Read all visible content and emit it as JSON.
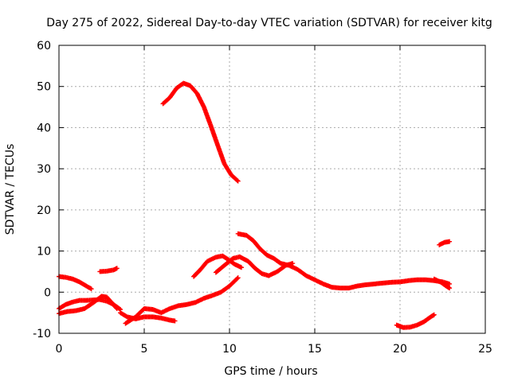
{
  "chart_data": {
    "type": "scatter",
    "title": "Day 275 of 2022, Sidereal Day-to-day VTEC variation (SDTVAR) for receiver kitg",
    "xlabel": "GPS time / hours",
    "ylabel": "SDTVAR / TECUs",
    "xlim": [
      0,
      25
    ],
    "ylim": [
      -10,
      60
    ],
    "xticks": [
      0,
      5,
      10,
      15,
      20,
      25
    ],
    "yticks": [
      -10,
      0,
      10,
      20,
      30,
      40,
      50,
      60
    ],
    "grid": true,
    "marker_color": "#ff0000",
    "series": [
      {
        "name": "arc-high-peak",
        "points": [
          [
            6.1,
            45.8
          ],
          [
            6.5,
            47.3
          ],
          [
            6.9,
            49.6
          ],
          [
            7.3,
            50.8
          ],
          [
            7.7,
            50.2
          ],
          [
            8.1,
            48.3
          ],
          [
            8.5,
            45.0
          ],
          [
            8.9,
            40.5
          ],
          [
            9.3,
            35.8
          ],
          [
            9.7,
            31.2
          ],
          [
            10.1,
            28.5
          ],
          [
            10.5,
            27.0
          ]
        ]
      },
      {
        "name": "arc-early-decline",
        "points": [
          [
            0.0,
            3.8
          ],
          [
            0.4,
            3.6
          ],
          [
            0.8,
            3.2
          ],
          [
            1.2,
            2.5
          ],
          [
            1.6,
            1.5
          ],
          [
            1.9,
            0.8
          ]
        ]
      },
      {
        "name": "arc-short-2.5h",
        "points": [
          [
            2.4,
            5.0
          ],
          [
            2.8,
            5.1
          ],
          [
            3.2,
            5.4
          ],
          [
            3.4,
            5.8
          ]
        ]
      },
      {
        "name": "arc-low-wave",
        "points": [
          [
            0.0,
            -4.0
          ],
          [
            0.4,
            -3.0
          ],
          [
            0.8,
            -2.4
          ],
          [
            1.2,
            -2.0
          ],
          [
            1.6,
            -2.0
          ],
          [
            2.0,
            -1.9
          ],
          [
            2.4,
            -1.8
          ],
          [
            2.8,
            -2.2
          ],
          [
            3.2,
            -3.0
          ],
          [
            3.6,
            -4.2
          ]
        ]
      },
      {
        "name": "arc-low-hump",
        "points": [
          [
            0.0,
            -5.2
          ],
          [
            0.5,
            -4.7
          ],
          [
            1.0,
            -4.5
          ],
          [
            1.5,
            -4.0
          ],
          [
            2.0,
            -2.6
          ],
          [
            2.5,
            -1.0
          ],
          [
            2.8,
            -1.2
          ],
          [
            3.1,
            -2.6
          ],
          [
            3.4,
            -4.0
          ]
        ]
      },
      {
        "name": "arc-dip-4to7h",
        "points": [
          [
            3.6,
            -5.0
          ],
          [
            4.0,
            -6.0
          ],
          [
            4.5,
            -6.5
          ],
          [
            5.0,
            -6.0
          ],
          [
            5.5,
            -6.0
          ],
          [
            6.0,
            -6.3
          ],
          [
            6.5,
            -6.8
          ],
          [
            6.8,
            -7.0
          ]
        ]
      },
      {
        "name": "arc-rise-to-10.5h",
        "points": [
          [
            3.9,
            -7.6
          ],
          [
            4.5,
            -6.0
          ],
          [
            5.0,
            -4.0
          ],
          [
            5.5,
            -4.2
          ],
          [
            6.0,
            -5.0
          ],
          [
            6.5,
            -4.0
          ],
          [
            7.0,
            -3.3
          ],
          [
            7.5,
            -3.0
          ],
          [
            8.0,
            -2.5
          ],
          [
            8.5,
            -1.5
          ],
          [
            9.0,
            -0.8
          ],
          [
            9.5,
            0.0
          ],
          [
            10.0,
            1.5
          ],
          [
            10.5,
            3.5
          ]
        ]
      },
      {
        "name": "arc-bump-8to11h",
        "points": [
          [
            7.9,
            3.8
          ],
          [
            8.3,
            5.5
          ],
          [
            8.7,
            7.5
          ],
          [
            9.2,
            8.5
          ],
          [
            9.6,
            8.8
          ],
          [
            9.9,
            8.0
          ],
          [
            10.3,
            6.8
          ],
          [
            10.7,
            6.0
          ]
        ]
      },
      {
        "name": "arc-bump-9to12h",
        "points": [
          [
            9.2,
            4.8
          ],
          [
            9.7,
            6.5
          ],
          [
            10.2,
            8.2
          ],
          [
            10.6,
            8.6
          ],
          [
            11.1,
            7.5
          ],
          [
            11.5,
            5.8
          ],
          [
            11.9,
            4.5
          ],
          [
            12.3,
            4.0
          ],
          [
            12.8,
            5.0
          ],
          [
            13.3,
            6.5
          ],
          [
            13.7,
            7.0
          ]
        ]
      },
      {
        "name": "arc-mid-to-end",
        "points": [
          [
            10.5,
            14.2
          ],
          [
            11.0,
            13.8
          ],
          [
            11.4,
            12.5
          ],
          [
            11.8,
            10.5
          ],
          [
            12.2,
            9.0
          ],
          [
            12.6,
            8.2
          ],
          [
            13.0,
            7.0
          ],
          [
            13.5,
            6.5
          ],
          [
            14.0,
            5.5
          ],
          [
            14.5,
            4.0
          ],
          [
            15.0,
            3.0
          ],
          [
            15.5,
            2.0
          ],
          [
            16.0,
            1.2
          ],
          [
            16.5,
            1.0
          ],
          [
            17.0,
            1.0
          ],
          [
            17.5,
            1.5
          ],
          [
            18.0,
            1.8
          ],
          [
            18.5,
            2.0
          ],
          [
            19.0,
            2.2
          ],
          [
            19.5,
            2.4
          ],
          [
            20.0,
            2.5
          ],
          [
            20.5,
            2.8
          ],
          [
            21.0,
            3.0
          ],
          [
            21.5,
            3.0
          ],
          [
            22.0,
            2.8
          ],
          [
            22.5,
            2.5
          ],
          [
            22.9,
            2.0
          ]
        ]
      },
      {
        "name": "arc-late-trough",
        "points": [
          [
            19.8,
            -8.0
          ],
          [
            20.2,
            -8.6
          ],
          [
            20.6,
            -8.5
          ],
          [
            21.0,
            -8.0
          ],
          [
            21.4,
            -7.2
          ],
          [
            21.8,
            -6.0
          ],
          [
            22.0,
            -5.5
          ]
        ]
      },
      {
        "name": "arc-late-high",
        "points": [
          [
            22.3,
            11.5
          ],
          [
            22.6,
            12.1
          ],
          [
            22.9,
            12.3
          ]
        ]
      },
      {
        "name": "arc-late-tail",
        "points": [
          [
            22.0,
            3.2
          ],
          [
            22.4,
            2.4
          ],
          [
            22.7,
            1.5
          ],
          [
            22.9,
            1.0
          ]
        ]
      }
    ]
  }
}
